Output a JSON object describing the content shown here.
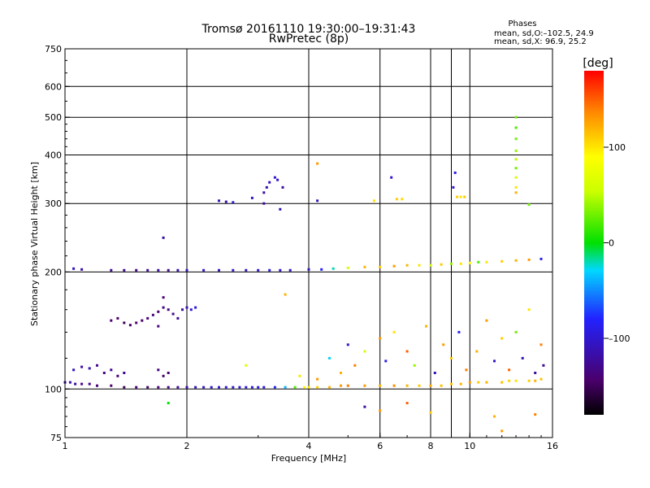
{
  "title_line1": "Tromsø 20161110 19:30:00–19:31:43",
  "title_line2": "RwPretec (8p)",
  "stats": {
    "heading": "Phases",
    "line1": "mean, sd,O:–102.5, 24.9",
    "line2": "mean, sd,X:  96.9, 25.2"
  },
  "colorbar": {
    "unit": "[deg]",
    "range": [
      -180,
      180
    ],
    "ticks": [
      {
        "value": 100,
        "label": "100"
      },
      {
        "value": 0,
        "label": "0"
      },
      {
        "value": -100,
        "label": "–100"
      }
    ]
  },
  "chart_data": {
    "type": "scatter",
    "xlabel": "Frequency [MHz]",
    "ylabel": "Stationary phase Virtual Height [km]",
    "xscale": "log",
    "yscale": "log",
    "xlim": [
      1,
      16
    ],
    "ylim": [
      75,
      750
    ],
    "grid": true,
    "xticks": [
      {
        "value": 1,
        "label": "1"
      },
      {
        "value": 2,
        "label": "2"
      },
      {
        "value": 4,
        "label": "4"
      },
      {
        "value": 6,
        "label": "6"
      },
      {
        "value": 8,
        "label": "8"
      },
      {
        "value": 10,
        "label": "10"
      },
      {
        "value": 16,
        "label": "16"
      }
    ],
    "xgrid": [
      2,
      4,
      6,
      8,
      9,
      10
    ],
    "yticks": [
      {
        "value": 75,
        "label": "75"
      },
      {
        "value": 100,
        "label": "100"
      },
      {
        "value": 200,
        "label": "200"
      },
      {
        "value": 300,
        "label": "300"
      },
      {
        "value": 400,
        "label": "400"
      },
      {
        "value": 500,
        "label": "500"
      },
      {
        "value": 600,
        "label": "600"
      },
      {
        "value": 750,
        "label": "750"
      }
    ],
    "ygrid": [
      100,
      200,
      300,
      400,
      500,
      600
    ],
    "points": [
      {
        "x": 1.0,
        "y": 104,
        "phase": -120
      },
      {
        "x": 1.03,
        "y": 104,
        "phase": -115
      },
      {
        "x": 1.06,
        "y": 103,
        "phase": -125
      },
      {
        "x": 1.1,
        "y": 103,
        "phase": -130
      },
      {
        "x": 1.15,
        "y": 103,
        "phase": -135
      },
      {
        "x": 1.2,
        "y": 102,
        "phase": -140
      },
      {
        "x": 1.3,
        "y": 102,
        "phase": -145
      },
      {
        "x": 1.4,
        "y": 101,
        "phase": -150
      },
      {
        "x": 1.5,
        "y": 101,
        "phase": -145
      },
      {
        "x": 1.6,
        "y": 101,
        "phase": -150
      },
      {
        "x": 1.7,
        "y": 101,
        "phase": -140
      },
      {
        "x": 1.8,
        "y": 101,
        "phase": -135
      },
      {
        "x": 1.9,
        "y": 101,
        "phase": -125
      },
      {
        "x": 2.0,
        "y": 101,
        "phase": -120
      },
      {
        "x": 2.1,
        "y": 101,
        "phase": -110
      },
      {
        "x": 2.2,
        "y": 101,
        "phase": -105
      },
      {
        "x": 2.3,
        "y": 101,
        "phase": -100
      },
      {
        "x": 2.4,
        "y": 101,
        "phase": -95
      },
      {
        "x": 2.5,
        "y": 101,
        "phase": -95
      },
      {
        "x": 2.6,
        "y": 101,
        "phase": -100
      },
      {
        "x": 2.7,
        "y": 101,
        "phase": -100
      },
      {
        "x": 2.8,
        "y": 101,
        "phase": -95
      },
      {
        "x": 2.9,
        "y": 101,
        "phase": -95
      },
      {
        "x": 3.0,
        "y": 101,
        "phase": -90
      },
      {
        "x": 3.1,
        "y": 101,
        "phase": -95
      },
      {
        "x": 3.3,
        "y": 101,
        "phase": -80
      },
      {
        "x": 3.5,
        "y": 101,
        "phase": -40
      },
      {
        "x": 3.7,
        "y": 101,
        "phase": 20
      },
      {
        "x": 3.9,
        "y": 101,
        "phase": 90
      },
      {
        "x": 4.0,
        "y": 101,
        "phase": 100
      },
      {
        "x": 4.2,
        "y": 101,
        "phase": 110
      },
      {
        "x": 4.5,
        "y": 101,
        "phase": 120
      },
      {
        "x": 4.8,
        "y": 102,
        "phase": 130
      },
      {
        "x": 5.0,
        "y": 102,
        "phase": 140
      },
      {
        "x": 5.5,
        "y": 102,
        "phase": 130
      },
      {
        "x": 6.0,
        "y": 102,
        "phase": 120
      },
      {
        "x": 6.5,
        "y": 102,
        "phase": 135
      },
      {
        "x": 7.0,
        "y": 102,
        "phase": 120
      },
      {
        "x": 7.5,
        "y": 102,
        "phase": 110
      },
      {
        "x": 8.0,
        "y": 102,
        "phase": 125
      },
      {
        "x": 8.5,
        "y": 102,
        "phase": 115
      },
      {
        "x": 9.0,
        "y": 103,
        "phase": 110
      },
      {
        "x": 9.5,
        "y": 103,
        "phase": 120
      },
      {
        "x": 10.0,
        "y": 104,
        "phase": 130
      },
      {
        "x": 10.5,
        "y": 104,
        "phase": 110
      },
      {
        "x": 11.0,
        "y": 104,
        "phase": 120
      },
      {
        "x": 12.0,
        "y": 104,
        "phase": 115
      },
      {
        "x": 12.5,
        "y": 105,
        "phase": 105
      },
      {
        "x": 13.0,
        "y": 105,
        "phase": 100
      },
      {
        "x": 14.0,
        "y": 105,
        "phase": 110
      },
      {
        "x": 14.5,
        "y": 105,
        "phase": 120
      },
      {
        "x": 15.0,
        "y": 106,
        "phase": 115
      },
      {
        "x": 1.05,
        "y": 112,
        "phase": -110
      },
      {
        "x": 1.1,
        "y": 114,
        "phase": -120
      },
      {
        "x": 1.15,
        "y": 113,
        "phase": -115
      },
      {
        "x": 1.2,
        "y": 115,
        "phase": -130
      },
      {
        "x": 1.25,
        "y": 110,
        "phase": -135
      },
      {
        "x": 1.3,
        "y": 112,
        "phase": -125
      },
      {
        "x": 1.35,
        "y": 108,
        "phase": -140
      },
      {
        "x": 1.4,
        "y": 110,
        "phase": -130
      },
      {
        "x": 1.7,
        "y": 112,
        "phase": -135
      },
      {
        "x": 1.75,
        "y": 108,
        "phase": -145
      },
      {
        "x": 1.8,
        "y": 110,
        "phase": -140
      },
      {
        "x": 1.3,
        "y": 150,
        "phase": -140
      },
      {
        "x": 1.35,
        "y": 152,
        "phase": -145
      },
      {
        "x": 1.4,
        "y": 148,
        "phase": -150
      },
      {
        "x": 1.45,
        "y": 146,
        "phase": -145
      },
      {
        "x": 1.5,
        "y": 148,
        "phase": -140
      },
      {
        "x": 1.55,
        "y": 150,
        "phase": -145
      },
      {
        "x": 1.6,
        "y": 152,
        "phase": -140
      },
      {
        "x": 1.65,
        "y": 155,
        "phase": -135
      },
      {
        "x": 1.7,
        "y": 158,
        "phase": -140
      },
      {
        "x": 1.75,
        "y": 162,
        "phase": -130
      },
      {
        "x": 1.8,
        "y": 160,
        "phase": -135
      },
      {
        "x": 1.85,
        "y": 156,
        "phase": -130
      },
      {
        "x": 1.9,
        "y": 152,
        "phase": -125
      },
      {
        "x": 1.95,
        "y": 160,
        "phase": -120
      },
      {
        "x": 2.0,
        "y": 162,
        "phase": -110
      },
      {
        "x": 2.05,
        "y": 160,
        "phase": -100
      },
      {
        "x": 2.1,
        "y": 162,
        "phase": -95
      },
      {
        "x": 1.75,
        "y": 172,
        "phase": -140
      },
      {
        "x": 1.7,
        "y": 145,
        "phase": -135
      },
      {
        "x": 1.05,
        "y": 204,
        "phase": -110
      },
      {
        "x": 1.1,
        "y": 203,
        "phase": -115
      },
      {
        "x": 1.3,
        "y": 202,
        "phase": -125
      },
      {
        "x": 1.4,
        "y": 202,
        "phase": -130
      },
      {
        "x": 1.5,
        "y": 202,
        "phase": -135
      },
      {
        "x": 1.6,
        "y": 202,
        "phase": -125
      },
      {
        "x": 1.7,
        "y": 202,
        "phase": -120
      },
      {
        "x": 1.8,
        "y": 202,
        "phase": -130
      },
      {
        "x": 1.9,
        "y": 202,
        "phase": -115
      },
      {
        "x": 2.0,
        "y": 202,
        "phase": -110
      },
      {
        "x": 2.2,
        "y": 202,
        "phase": -105
      },
      {
        "x": 2.4,
        "y": 202,
        "phase": -110
      },
      {
        "x": 2.6,
        "y": 202,
        "phase": -100
      },
      {
        "x": 2.8,
        "y": 202,
        "phase": -105
      },
      {
        "x": 3.0,
        "y": 202,
        "phase": -100
      },
      {
        "x": 3.2,
        "y": 202,
        "phase": -95
      },
      {
        "x": 3.4,
        "y": 202,
        "phase": -100
      },
      {
        "x": 3.6,
        "y": 202,
        "phase": -105
      },
      {
        "x": 4.0,
        "y": 203,
        "phase": -110
      },
      {
        "x": 4.3,
        "y": 203,
        "phase": -80
      },
      {
        "x": 4.6,
        "y": 204,
        "phase": -20
      },
      {
        "x": 5.0,
        "y": 205,
        "phase": 60
      },
      {
        "x": 5.5,
        "y": 206,
        "phase": 120
      },
      {
        "x": 6.0,
        "y": 206,
        "phase": 110
      },
      {
        "x": 6.5,
        "y": 207,
        "phase": 130
      },
      {
        "x": 7.0,
        "y": 208,
        "phase": 120
      },
      {
        "x": 7.5,
        "y": 208,
        "phase": 100
      },
      {
        "x": 8.0,
        "y": 208,
        "phase": 60
      },
      {
        "x": 8.5,
        "y": 209,
        "phase": 110
      },
      {
        "x": 9.0,
        "y": 210,
        "phase": 40
      },
      {
        "x": 9.5,
        "y": 210,
        "phase": 100
      },
      {
        "x": 10.0,
        "y": 211,
        "phase": 90
      },
      {
        "x": 10.5,
        "y": 212,
        "phase": 20
      },
      {
        "x": 11.0,
        "y": 212,
        "phase": 100
      },
      {
        "x": 12.0,
        "y": 213,
        "phase": 110
      },
      {
        "x": 13.0,
        "y": 214,
        "phase": 120
      },
      {
        "x": 14.0,
        "y": 215,
        "phase": 130
      },
      {
        "x": 15.0,
        "y": 216,
        "phase": -90
      },
      {
        "x": 1.75,
        "y": 245,
        "phase": -120
      },
      {
        "x": 2.4,
        "y": 305,
        "phase": -110
      },
      {
        "x": 2.5,
        "y": 303,
        "phase": -115
      },
      {
        "x": 2.6,
        "y": 302,
        "phase": -100
      },
      {
        "x": 2.9,
        "y": 310,
        "phase": -110
      },
      {
        "x": 3.1,
        "y": 320,
        "phase": -120
      },
      {
        "x": 3.15,
        "y": 330,
        "phase": -115
      },
      {
        "x": 3.2,
        "y": 340,
        "phase": -110
      },
      {
        "x": 3.1,
        "y": 300,
        "phase": -125
      },
      {
        "x": 3.3,
        "y": 350,
        "phase": -100
      },
      {
        "x": 3.35,
        "y": 345,
        "phase": -105
      },
      {
        "x": 3.4,
        "y": 290,
        "phase": -110
      },
      {
        "x": 3.45,
        "y": 330,
        "phase": -120
      },
      {
        "x": 4.2,
        "y": 380,
        "phase": 130
      },
      {
        "x": 4.2,
        "y": 305,
        "phase": -110
      },
      {
        "x": 5.8,
        "y": 305,
        "phase": 100
      },
      {
        "x": 6.4,
        "y": 350,
        "phase": -100
      },
      {
        "x": 6.6,
        "y": 308,
        "phase": 110
      },
      {
        "x": 6.8,
        "y": 308,
        "phase": 105
      },
      {
        "x": 9.2,
        "y": 360,
        "phase": -90
      },
      {
        "x": 9.3,
        "y": 312,
        "phase": 110
      },
      {
        "x": 9.5,
        "y": 312,
        "phase": 100
      },
      {
        "x": 9.7,
        "y": 312,
        "phase": 110
      },
      {
        "x": 9.1,
        "y": 330,
        "phase": -100
      },
      {
        "x": 13.0,
        "y": 500,
        "phase": 30
      },
      {
        "x": 13.0,
        "y": 470,
        "phase": 20
      },
      {
        "x": 13.0,
        "y": 440,
        "phase": 30
      },
      {
        "x": 13.0,
        "y": 410,
        "phase": 40
      },
      {
        "x": 13.0,
        "y": 390,
        "phase": 50
      },
      {
        "x": 13.0,
        "y": 370,
        "phase": 30
      },
      {
        "x": 13.0,
        "y": 350,
        "phase": 60
      },
      {
        "x": 13.0,
        "y": 330,
        "phase": 100
      },
      {
        "x": 13.0,
        "y": 320,
        "phase": 120
      },
      {
        "x": 14.0,
        "y": 298,
        "phase": 30
      },
      {
        "x": 4.5,
        "y": 120,
        "phase": -30
      },
      {
        "x": 4.8,
        "y": 110,
        "phase": 120
      },
      {
        "x": 5.0,
        "y": 130,
        "phase": -100
      },
      {
        "x": 5.2,
        "y": 115,
        "phase": 140
      },
      {
        "x": 5.5,
        "y": 125,
        "phase": 60
      },
      {
        "x": 6.0,
        "y": 135,
        "phase": 130
      },
      {
        "x": 6.2,
        "y": 118,
        "phase": -90
      },
      {
        "x": 6.5,
        "y": 140,
        "phase": 100
      },
      {
        "x": 7.0,
        "y": 125,
        "phase": 150
      },
      {
        "x": 7.3,
        "y": 115,
        "phase": 40
      },
      {
        "x": 7.8,
        "y": 145,
        "phase": 120
      },
      {
        "x": 8.2,
        "y": 110,
        "phase": -110
      },
      {
        "x": 8.6,
        "y": 130,
        "phase": 130
      },
      {
        "x": 9.0,
        "y": 120,
        "phase": 110
      },
      {
        "x": 9.4,
        "y": 140,
        "phase": -80
      },
      {
        "x": 9.8,
        "y": 112,
        "phase": 140
      },
      {
        "x": 10.4,
        "y": 125,
        "phase": 120
      },
      {
        "x": 11.0,
        "y": 150,
        "phase": 130
      },
      {
        "x": 11.5,
        "y": 118,
        "phase": -100
      },
      {
        "x": 12.0,
        "y": 135,
        "phase": 110
      },
      {
        "x": 12.5,
        "y": 112,
        "phase": 150
      },
      {
        "x": 13.0,
        "y": 140,
        "phase": 30
      },
      {
        "x": 13.5,
        "y": 120,
        "phase": -110
      },
      {
        "x": 14.0,
        "y": 160,
        "phase": 100
      },
      {
        "x": 14.5,
        "y": 110,
        "phase": -120
      },
      {
        "x": 15.0,
        "y": 130,
        "phase": 140
      },
      {
        "x": 15.2,
        "y": 115,
        "phase": -130
      },
      {
        "x": 5.5,
        "y": 90,
        "phase": -120
      },
      {
        "x": 6.0,
        "y": 88,
        "phase": 130
      },
      {
        "x": 7.0,
        "y": 92,
        "phase": 150
      },
      {
        "x": 8.0,
        "y": 87,
        "phase": 110
      },
      {
        "x": 11.5,
        "y": 85,
        "phase": 120
      },
      {
        "x": 14.5,
        "y": 86,
        "phase": 140
      },
      {
        "x": 12.0,
        "y": 78,
        "phase": 130
      },
      {
        "x": 3.5,
        "y": 175,
        "phase": 120
      },
      {
        "x": 2.8,
        "y": 115,
        "phase": 70
      },
      {
        "x": 3.8,
        "y": 108,
        "phase": 100
      },
      {
        "x": 4.2,
        "y": 106,
        "phase": 130
      },
      {
        "x": 1.8,
        "y": 92,
        "phase": 0
      }
    ]
  }
}
